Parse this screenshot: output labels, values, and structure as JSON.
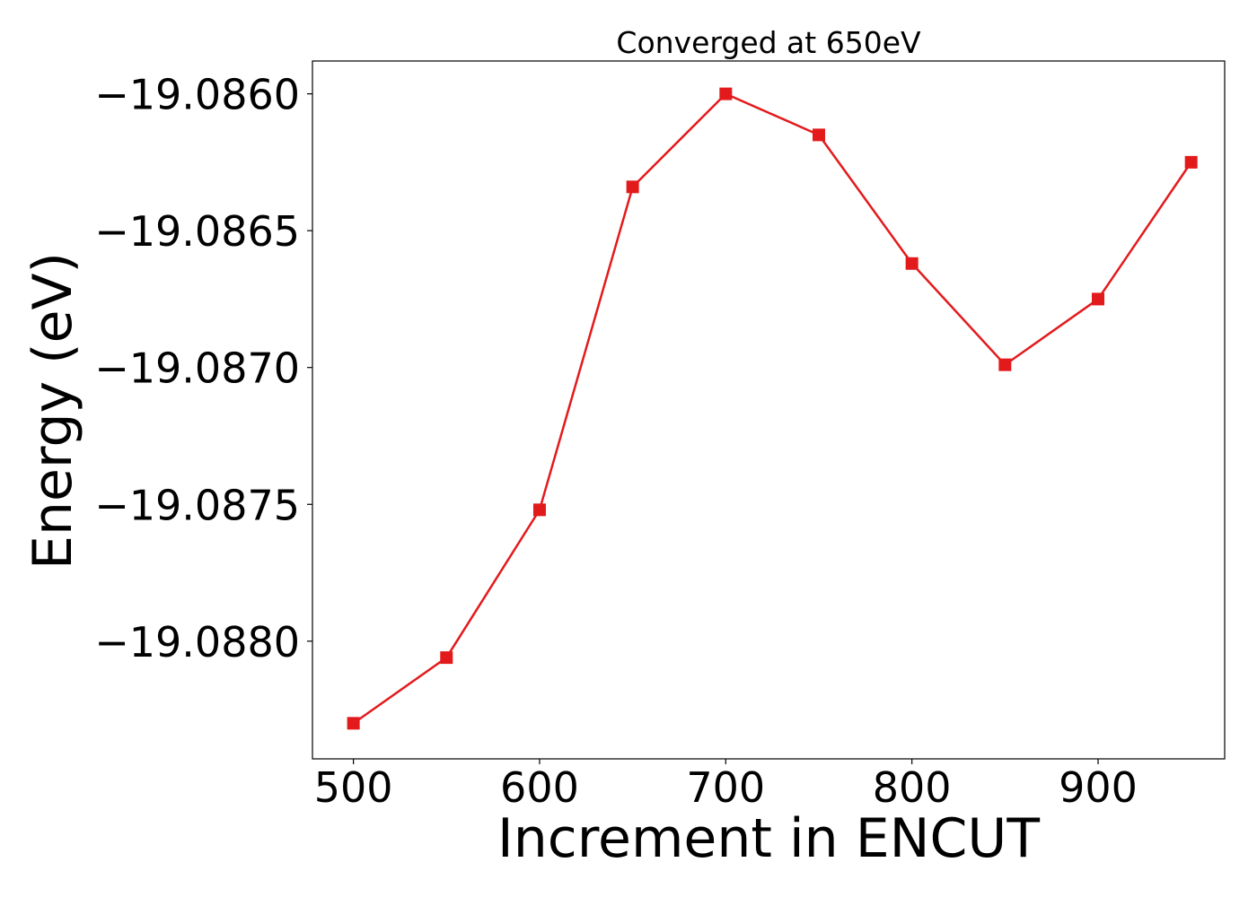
{
  "chart_data": {
    "type": "line",
    "title": "Converged at 650eV",
    "xlabel": "Increment in ENCUT",
    "ylabel": "Energy (eV)",
    "x": [
      500,
      550,
      600,
      650,
      700,
      750,
      800,
      850,
      900,
      950
    ],
    "series": [
      {
        "values": [
          -19.0883,
          -19.08806,
          -19.08752,
          -19.08634,
          -19.086,
          -19.08615,
          -19.08662,
          -19.08699,
          -19.08675,
          -19.08625
        ]
      }
    ],
    "xlim": [
      478,
      968
    ],
    "ylim": [
      -19.08843,
      -19.08588
    ],
    "xticks": [
      500,
      600,
      700,
      800,
      900
    ],
    "xtick_labels": [
      "500",
      "600",
      "700",
      "800",
      "900"
    ],
    "yticks": [
      -19.086,
      -19.0865,
      -19.087,
      -19.0875,
      -19.088
    ],
    "ytick_labels": [
      "−19.0860",
      "−19.0865",
      "−19.0870",
      "−19.0875",
      "−19.0880"
    ],
    "grid": false,
    "marker": "square",
    "color": "#e31a1c"
  }
}
